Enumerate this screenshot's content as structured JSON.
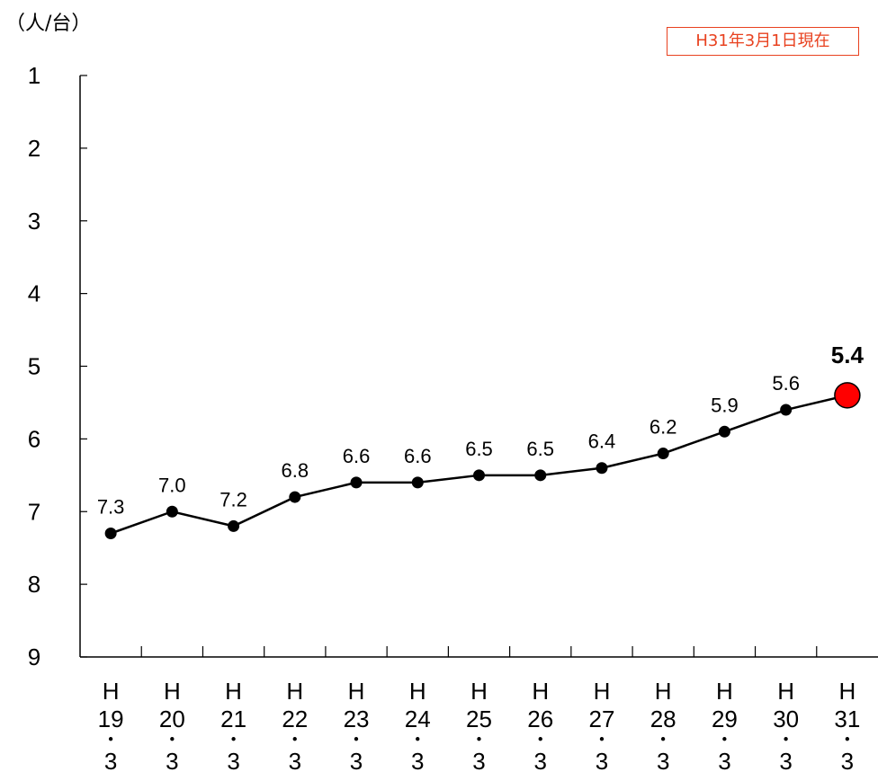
{
  "unit_label": "（人/台）",
  "as_of_badge": "H31年3月1日現在",
  "colors": {
    "line": "#000000",
    "highlight": "#ff0000",
    "badge": "#e8411f"
  },
  "chart_data": {
    "type": "line",
    "title": "",
    "xlabel": "",
    "ylabel": "（人/台）",
    "y_axis_inverted": true,
    "ylim": [
      1,
      9
    ],
    "yticks": [
      "1",
      "2",
      "3",
      "4",
      "5",
      "6",
      "7",
      "8",
      "9"
    ],
    "categories": [
      [
        "H",
        "19",
        "･",
        "3"
      ],
      [
        "H",
        "20",
        "･",
        "3"
      ],
      [
        "H",
        "21",
        "･",
        "3"
      ],
      [
        "H",
        "22",
        "･",
        "3"
      ],
      [
        "H",
        "23",
        "･",
        "3"
      ],
      [
        "H",
        "24",
        "･",
        "3"
      ],
      [
        "H",
        "25",
        "･",
        "3"
      ],
      [
        "H",
        "26",
        "･",
        "3"
      ],
      [
        "H",
        "27",
        "･",
        "3"
      ],
      [
        "H",
        "28",
        "･",
        "3"
      ],
      [
        "H",
        "29",
        "･",
        "3"
      ],
      [
        "H",
        "30",
        "･",
        "3"
      ],
      [
        "H",
        "31",
        "･",
        "3"
      ]
    ],
    "series": [
      {
        "values": [
          7.3,
          7.0,
          7.2,
          6.8,
          6.6,
          6.6,
          6.5,
          6.5,
          6.4,
          6.2,
          5.9,
          5.6,
          5.4
        ],
        "data_labels": [
          "7.3",
          "7.0",
          "7.2",
          "6.8",
          "6.6",
          "6.6",
          "6.5",
          "6.5",
          "6.4",
          "6.2",
          "5.9",
          "5.6",
          "5.4"
        ],
        "highlight_last": true
      }
    ],
    "grid": false,
    "legend": "none"
  }
}
